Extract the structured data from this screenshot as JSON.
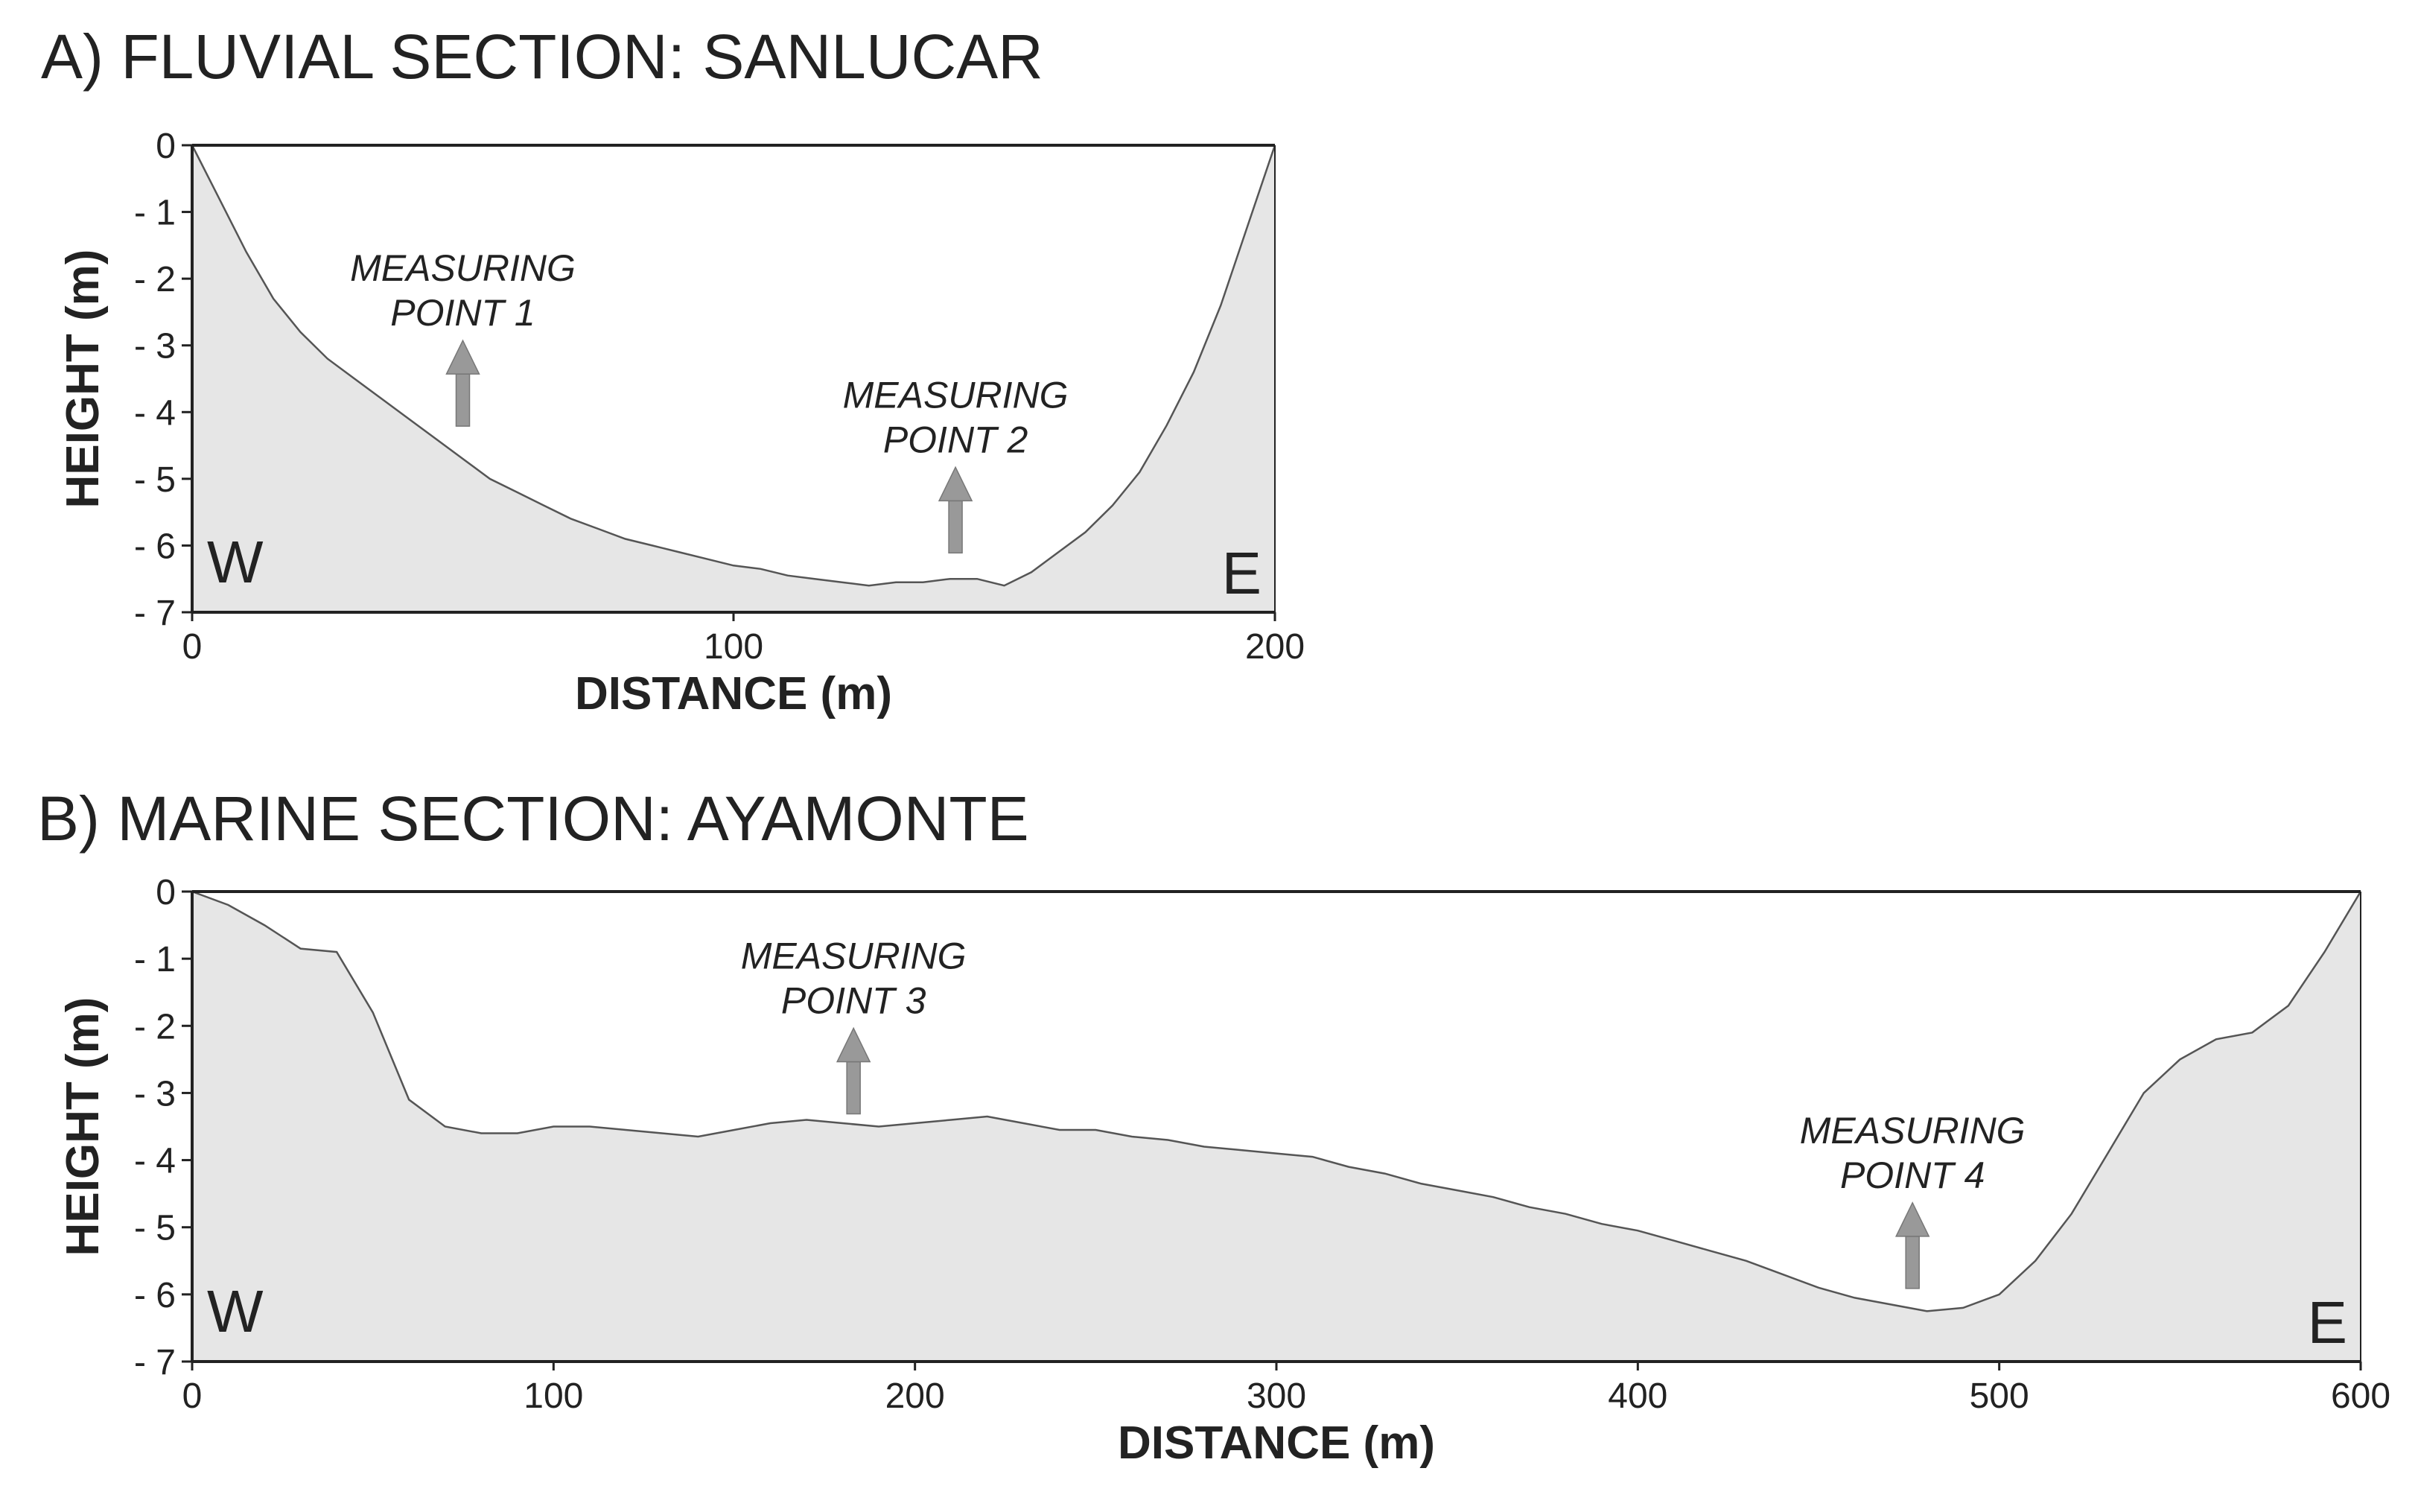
{
  "chart_data": [
    {
      "type": "area",
      "title": "A) FLUVIAL SECTION: SANLUCAR",
      "xlabel": "DISTANCE (m)",
      "ylabel": "HEIGHT (m)",
      "xlim": [
        0,
        200
      ],
      "ylim": [
        -7,
        0
      ],
      "xticks": [
        "0",
        "100",
        "200"
      ],
      "yticks": [
        "0",
        "- 1",
        "- 2",
        "- 3",
        "- 4",
        "- 5",
        "- 6",
        "- 7"
      ],
      "grid": false,
      "left_label": "W",
      "right_label": "E",
      "x": [
        0,
        5,
        10,
        15,
        20,
        25,
        30,
        35,
        40,
        45,
        50,
        55,
        60,
        65,
        70,
        75,
        80,
        85,
        90,
        95,
        100,
        105,
        110,
        115,
        120,
        125,
        130,
        135,
        140,
        145,
        150,
        155,
        160,
        165,
        170,
        175,
        180,
        185,
        190,
        195,
        200
      ],
      "y": [
        0,
        -0.8,
        -1.6,
        -2.3,
        -2.8,
        -3.2,
        -3.5,
        -3.8,
        -4.1,
        -4.4,
        -4.7,
        -5.0,
        -5.2,
        -5.4,
        -5.6,
        -5.75,
        -5.9,
        -6.0,
        -6.1,
        -6.2,
        -6.3,
        -6.35,
        -6.45,
        -6.5,
        -6.55,
        -6.6,
        -6.55,
        -6.55,
        -6.5,
        -6.5,
        -6.6,
        -6.4,
        -6.1,
        -5.8,
        -5.4,
        -4.9,
        -4.2,
        -3.4,
        -2.4,
        -1.2,
        0
      ],
      "annotations": [
        {
          "label": [
            "MEASURING",
            "POINT 1"
          ],
          "x": 50,
          "y": -4.3
        },
        {
          "label": [
            "MEASURING",
            "POINT 2"
          ],
          "x": 141,
          "y": -6.2
        }
      ]
    },
    {
      "type": "area",
      "title": "B) MARINE SECTION: AYAMONTE",
      "xlabel": "DISTANCE (m)",
      "ylabel": "HEIGHT (m)",
      "xlim": [
        0,
        600
      ],
      "ylim": [
        -7,
        0
      ],
      "xticks": [
        "0",
        "100",
        "200",
        "300",
        "400",
        "500",
        "600"
      ],
      "yticks": [
        "0",
        "- 1",
        "- 2",
        "- 3",
        "- 4",
        "- 5",
        "- 6",
        "- 7"
      ],
      "grid": false,
      "left_label": "W",
      "right_label": "E",
      "x": [
        0,
        10,
        20,
        30,
        40,
        50,
        60,
        70,
        80,
        90,
        100,
        110,
        120,
        130,
        140,
        150,
        160,
        170,
        180,
        190,
        200,
        210,
        220,
        230,
        240,
        250,
        260,
        270,
        280,
        290,
        300,
        310,
        320,
        330,
        340,
        350,
        360,
        370,
        380,
        390,
        400,
        410,
        420,
        430,
        440,
        450,
        460,
        470,
        480,
        490,
        500,
        510,
        520,
        530,
        540,
        550,
        560,
        570,
        580,
        590,
        600
      ],
      "y": [
        0,
        -0.2,
        -0.5,
        -0.85,
        -0.9,
        -1.8,
        -3.1,
        -3.5,
        -3.6,
        -3.6,
        -3.5,
        -3.5,
        -3.55,
        -3.6,
        -3.65,
        -3.55,
        -3.45,
        -3.4,
        -3.45,
        -3.5,
        -3.45,
        -3.4,
        -3.35,
        -3.45,
        -3.55,
        -3.55,
        -3.65,
        -3.7,
        -3.8,
        -3.85,
        -3.9,
        -3.95,
        -4.1,
        -4.2,
        -4.35,
        -4.45,
        -4.55,
        -4.7,
        -4.8,
        -4.95,
        -5.05,
        -5.2,
        -5.35,
        -5.5,
        -5.7,
        -5.9,
        -6.05,
        -6.15,
        -6.25,
        -6.2,
        -6.0,
        -5.5,
        -4.8,
        -3.9,
        -3.0,
        -2.5,
        -2.2,
        -2.1,
        -1.7,
        -0.9,
        0
      ],
      "annotations": [
        {
          "label": [
            "MEASURING",
            "POINT 3"
          ],
          "x": 183,
          "y": -3.4
        },
        {
          "label": [
            "MEASURING",
            "POINT 4"
          ],
          "x": 476,
          "y": -6.0
        }
      ]
    }
  ]
}
